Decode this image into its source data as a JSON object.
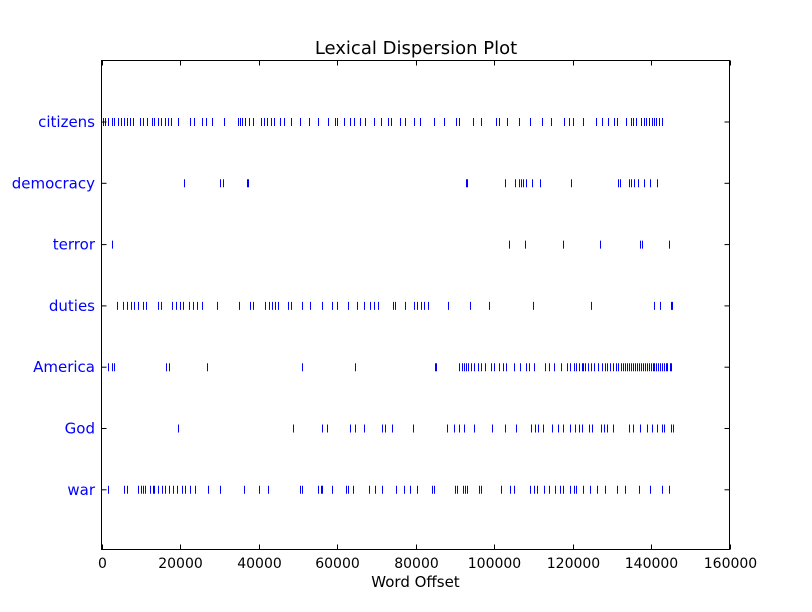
{
  "chart_data": {
    "type": "scatter",
    "title": "Lexical Dispersion Plot",
    "xlabel": "Word Offset",
    "ylabel": "",
    "xlim": [
      0,
      160000
    ],
    "xticks": [
      0,
      20000,
      40000,
      60000,
      80000,
      100000,
      120000,
      140000,
      160000
    ],
    "xtick_labels": [
      "0",
      "20000",
      "40000",
      "60000",
      "80000",
      "100000",
      "120000",
      "140000",
      "160000"
    ],
    "grid": false,
    "mark_color": "#0000ff",
    "label_color": "#0000ff",
    "series": [
      {
        "name": "citizens",
        "x": [
          300,
          800,
          1700,
          2600,
          3300,
          4200,
          5000,
          5800,
          6500,
          7200,
          8000,
          9800,
          10600,
          11500,
          12800,
          13500,
          14400,
          15200,
          16200,
          17000,
          17800,
          19500,
          22600,
          23600,
          25500,
          26700,
          28100,
          31100,
          34900,
          35300,
          35900,
          36500,
          37600,
          38600,
          40600,
          41500,
          42200,
          43100,
          44000,
          45400,
          46500,
          48200,
          50500,
          52800,
          55200,
          57600,
          59500,
          60000,
          61900,
          63400,
          64400,
          65900,
          67200,
          69500,
          71300,
          72900,
          73700,
          76100,
          77400,
          79700,
          81200,
          84600,
          87300,
          90200,
          91000,
          94600,
          96800,
          100600,
          101300,
          103300,
          106300,
          109200,
          112300,
          114600,
          117900,
          119000,
          120100,
          122600,
          126000,
          127600,
          129000,
          130600,
          131400,
          133700,
          134800,
          135400,
          136300,
          137400,
          138100,
          138700,
          139400,
          140200,
          140700,
          141400,
          142100,
          142700
        ]
      },
      {
        "name": "democracy",
        "x": [
          21000,
          30200,
          30900,
          37000,
          37300,
          92800,
          93200,
          102900,
          105400,
          106300,
          106800,
          107300,
          108200,
          109800,
          111800,
          119700,
          131600,
          132200,
          134300,
          134900,
          135700,
          136600,
          138300,
          139800,
          141600
        ]
      },
      {
        "name": "terror",
        "x": [
          2800,
          103700,
          108000,
          117700,
          127000,
          137300,
          137800,
          144500
        ]
      },
      {
        "name": "duties",
        "x": [
          4000,
          5500,
          6600,
          7400,
          8300,
          9200,
          10700,
          11400,
          14300,
          15100,
          17900,
          18900,
          20100,
          20800,
          22300,
          23300,
          24400,
          25500,
          29400,
          35100,
          37800,
          38600,
          41700,
          42700,
          43400,
          44100,
          44900,
          47500,
          48400,
          51000,
          53100,
          56200,
          58800,
          60100,
          62800,
          65000,
          66800,
          68300,
          69500,
          70400,
          74200,
          74800,
          77300,
          79600,
          80500,
          81300,
          82200,
          83300,
          88200,
          93800,
          98800,
          109900,
          124700,
          140800,
          142300,
          145100,
          145400
        ]
      },
      {
        "name": "America",
        "x": [
          1600,
          2700,
          3300,
          16500,
          17200,
          26800,
          51100,
          64700,
          85000,
          85300,
          91200,
          91800,
          92300,
          92900,
          93500,
          94100,
          94800,
          96000,
          96800,
          97600,
          99300,
          100100,
          101200,
          102300,
          103000,
          105200,
          106500,
          108200,
          108800,
          110100,
          112900,
          114100,
          115200,
          117100,
          118500,
          119300,
          120300,
          121000,
          121600,
          122300,
          122800,
          123300,
          123900,
          124600,
          125400,
          126400,
          127400,
          128200,
          128900,
          129600,
          130300,
          131000,
          131700,
          132400,
          132900,
          133500,
          134000,
          134500,
          135000,
          135500,
          136000,
          136400,
          136900,
          137400,
          137900,
          138400,
          138900,
          139400,
          139900,
          140400,
          140800,
          141300,
          141700,
          142200,
          142700,
          143200,
          143700,
          144200,
          144800,
          145200
        ]
      },
      {
        "name": "God",
        "x": [
          19500,
          48700,
          56200,
          57400,
          63300,
          64600,
          66900,
          71500,
          72200,
          74100,
          79300,
          88100,
          89800,
          91200,
          92400,
          95000,
          99500,
          102900,
          105600,
          109400,
          110400,
          111300,
          112600,
          114800,
          116400,
          117700,
          119400,
          120600,
          121700,
          122400,
          124300,
          124900,
          127300,
          127900,
          128700,
          130300,
          134300,
          135500,
          137100,
          139000,
          140200,
          141600,
          142700,
          143300,
          145200,
          145600
        ]
      },
      {
        "name": "war",
        "x": [
          1600,
          5800,
          6600,
          9300,
          10000,
          10500,
          11100,
          12400,
          13000,
          13500,
          14300,
          15400,
          16300,
          17200,
          18200,
          19200,
          20400,
          21200,
          22500,
          23900,
          27100,
          30300,
          36400,
          40200,
          42300,
          50600,
          51200,
          55100,
          55800,
          56200,
          58800,
          62300,
          62800,
          64200,
          68200,
          69800,
          71500,
          75100,
          77000,
          78700,
          80300,
          84300,
          84800,
          90000,
          90500,
          92000,
          92600,
          93100,
          96200,
          96800,
          101900,
          104200,
          105000,
          109100,
          110200,
          111000,
          112800,
          114000,
          115500,
          116800,
          117600,
          119400,
          120300,
          121000,
          122600,
          124500,
          126300,
          128400,
          131300,
          133500,
          136900,
          139800,
          142800,
          144500
        ]
      }
    ]
  }
}
